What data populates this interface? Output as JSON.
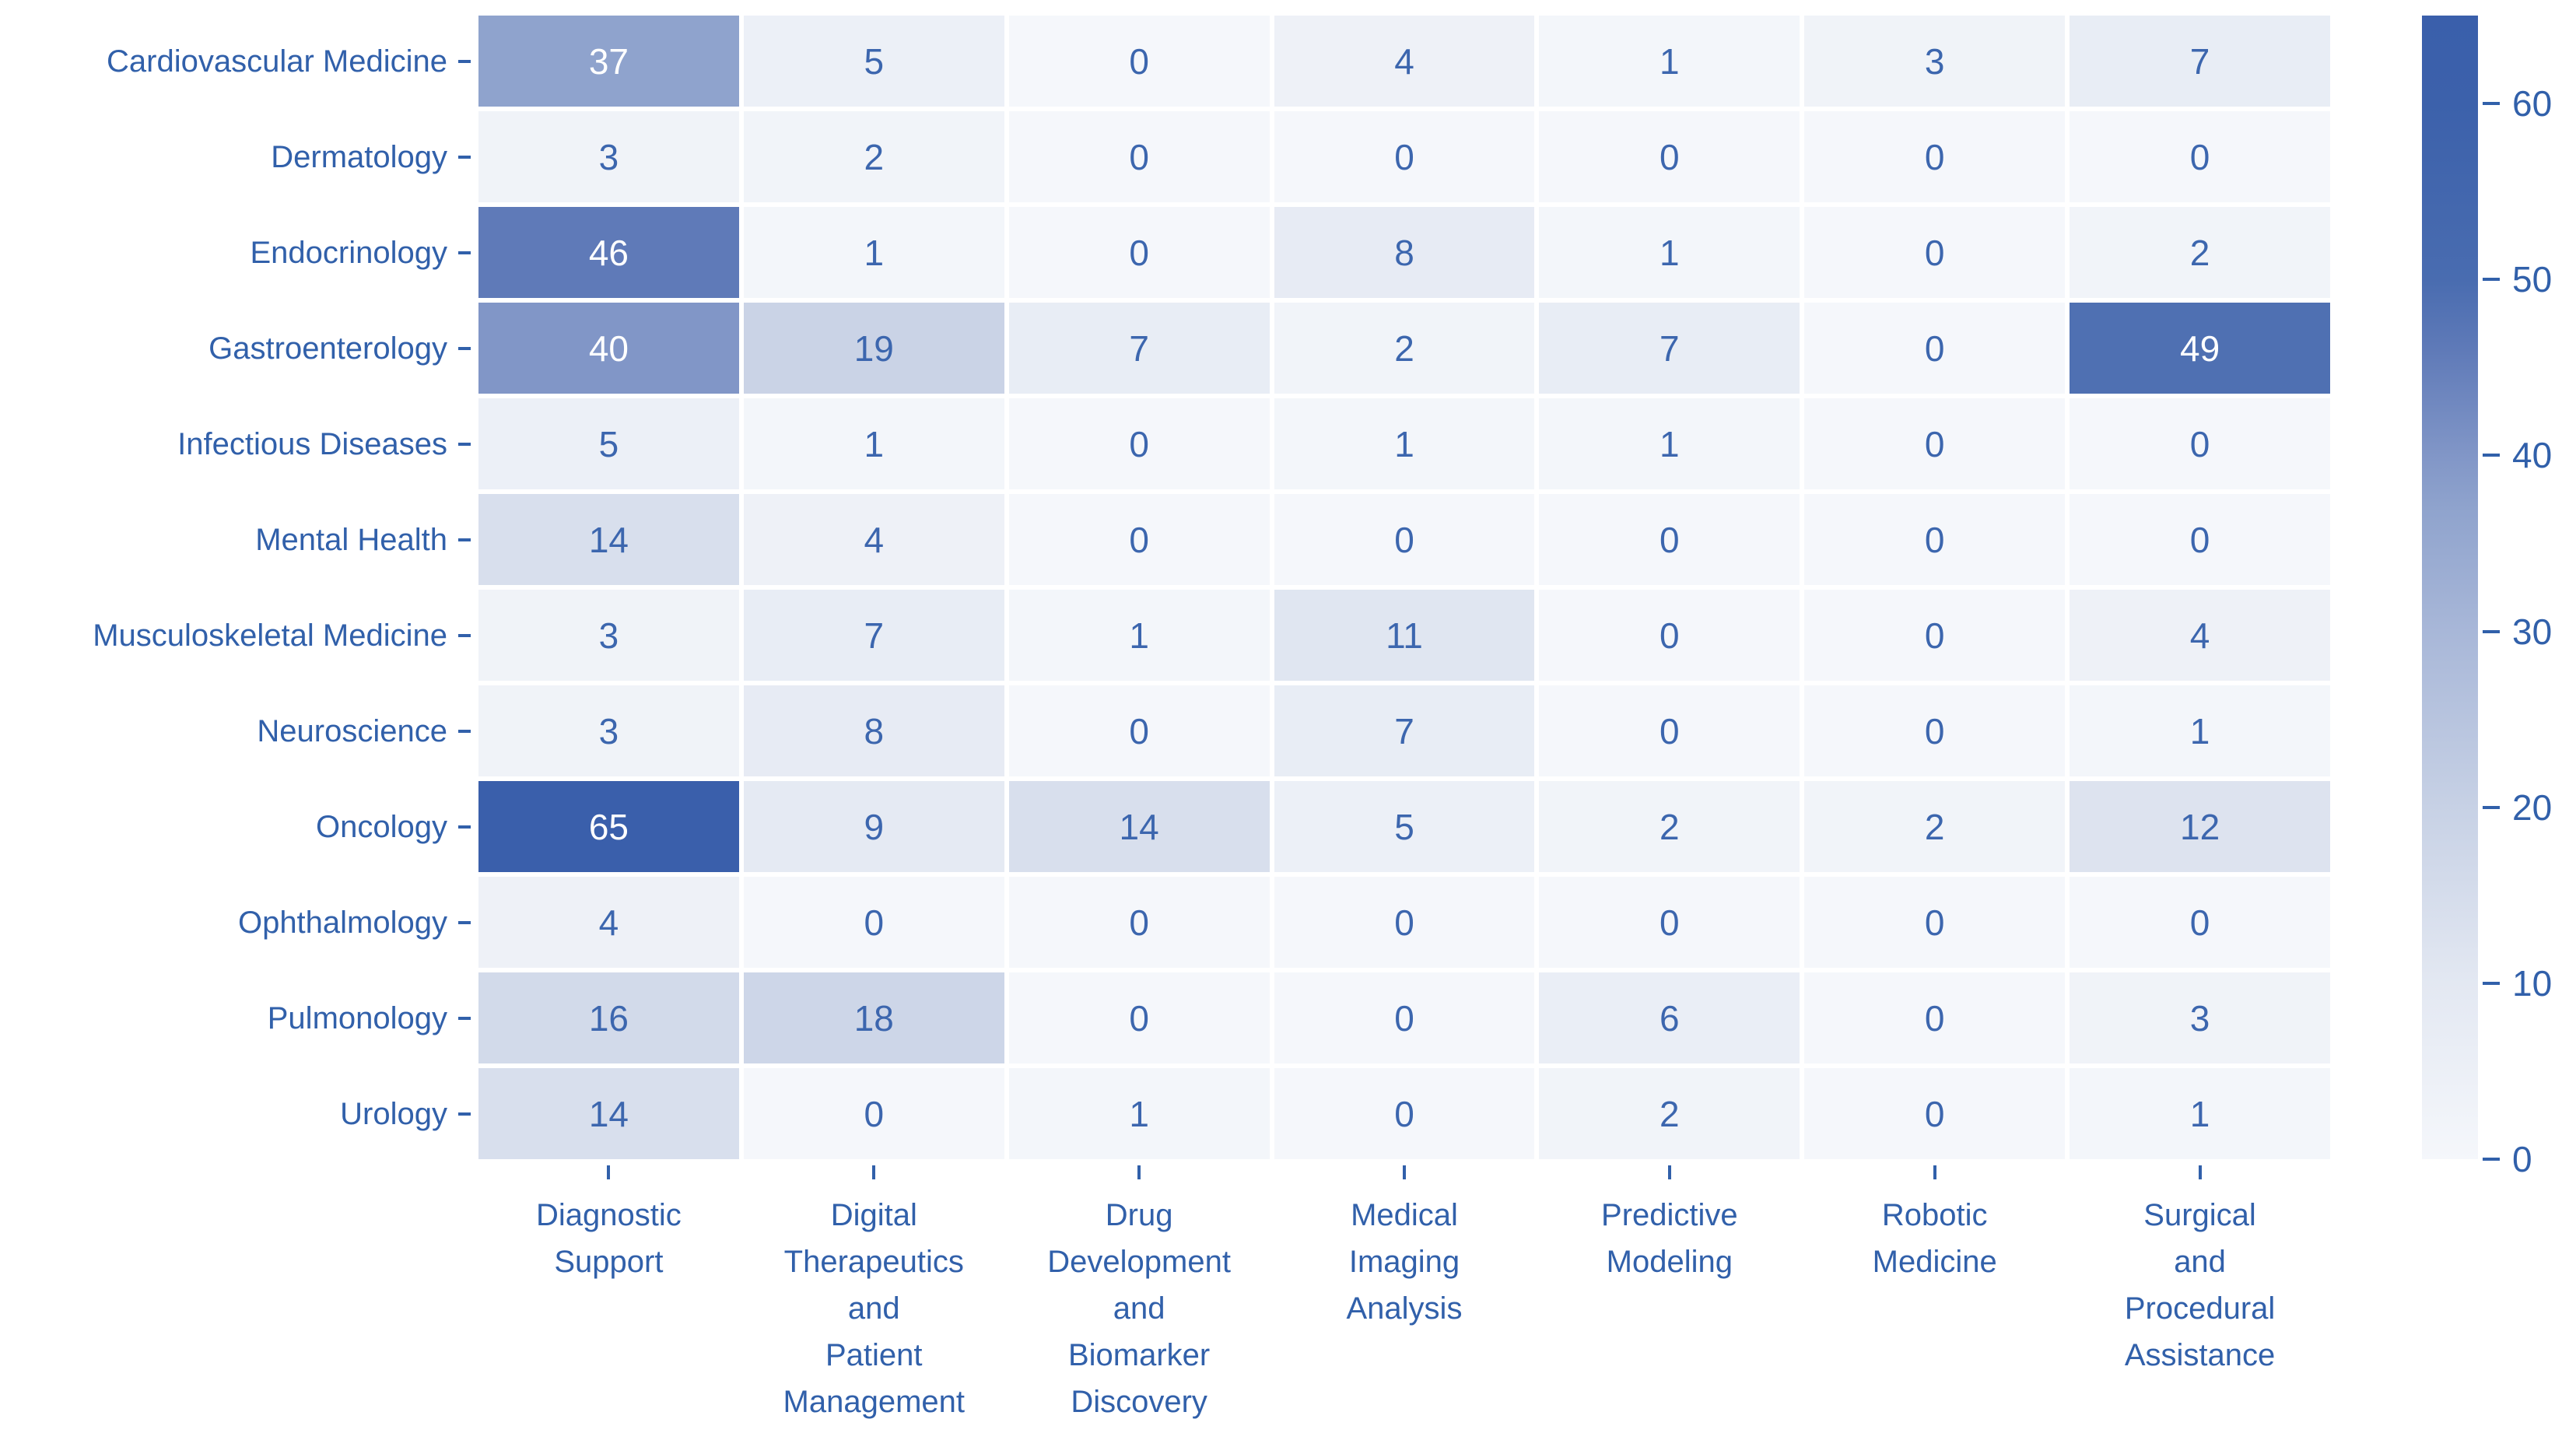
{
  "chart_data": {
    "type": "heatmap",
    "title": "",
    "xlabel": "",
    "ylabel": "",
    "rows": [
      "Cardiovascular Medicine",
      "Dermatology",
      "Endocrinology",
      "Gastroenterology",
      "Infectious Diseases",
      "Mental Health",
      "Musculoskeletal Medicine",
      "Neuroscience",
      "Oncology",
      "Ophthalmology",
      "Pulmonology",
      "Urology"
    ],
    "columns": [
      "Diagnostic Support",
      "Digital Therapeutics and Patient Management",
      "Drug Development and Biomarker Discovery",
      "Medical Imaging Analysis",
      "Predictive Modeling",
      "Robotic Medicine",
      "Surgical and Procedural Assistance"
    ],
    "column_label_lines": [
      "Diagnostic\nSupport",
      "Digital\nTherapeutics\nand\nPatient\nManagement",
      "Drug\nDevelopment\nand\nBiomarker\nDiscovery",
      "Medical\nImaging\nAnalysis",
      "Predictive\nModeling",
      "Robotic\nMedicine",
      "Surgical\nand\nProcedural\nAssistance"
    ],
    "values": [
      [
        37,
        5,
        0,
        4,
        1,
        3,
        7
      ],
      [
        3,
        2,
        0,
        0,
        0,
        0,
        0
      ],
      [
        46,
        1,
        0,
        8,
        1,
        0,
        2
      ],
      [
        40,
        19,
        7,
        2,
        7,
        0,
        49
      ],
      [
        5,
        1,
        0,
        1,
        1,
        0,
        0
      ],
      [
        14,
        4,
        0,
        0,
        0,
        0,
        0
      ],
      [
        3,
        7,
        1,
        11,
        0,
        0,
        4
      ],
      [
        3,
        8,
        0,
        7,
        0,
        0,
        1
      ],
      [
        65,
        9,
        14,
        5,
        2,
        2,
        12
      ],
      [
        4,
        0,
        0,
        0,
        0,
        0,
        0
      ],
      [
        16,
        18,
        0,
        0,
        6,
        0,
        3
      ],
      [
        14,
        0,
        1,
        0,
        2,
        0,
        1
      ]
    ],
    "colorbar": {
      "position": "right",
      "vmin": 0,
      "vmax": 65,
      "ticks": [
        0,
        10,
        20,
        30,
        40,
        50,
        60
      ]
    },
    "annotations": true,
    "grid": false,
    "colors": {
      "background": "#ffffff",
      "label": "#3160aa",
      "tick": "#3160aa",
      "cell_text_dark": "#3c66ae",
      "cell_text_light": "#ffffff",
      "white_text_threshold": 30,
      "scale_stops": [
        [
          0,
          "#f5f7fb"
        ],
        [
          10,
          "#e3e8f2"
        ],
        [
          20,
          "#c7d1e5"
        ],
        [
          30,
          "#a8b7d8"
        ],
        [
          37,
          "#8fa3cd"
        ],
        [
          40,
          "#8196c7"
        ],
        [
          46,
          "#5f7ab8"
        ],
        [
          50,
          "#496cb0"
        ],
        [
          60,
          "#3c61ab"
        ],
        [
          65,
          "#3a5fab"
        ]
      ]
    }
  }
}
